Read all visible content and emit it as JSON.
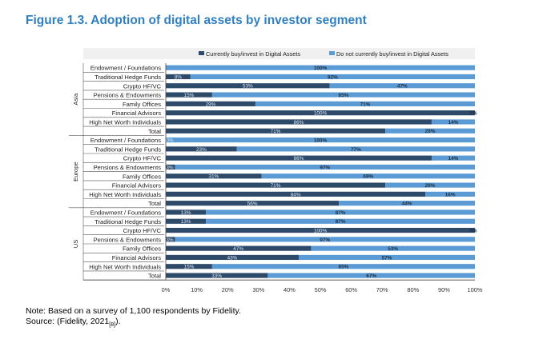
{
  "figure": {
    "title": "Figure 1.3. Adoption of digital assets by investor segment",
    "note": "Note: Based on a survey of 1,100 respondents by Fidelity.",
    "source_prefix": "Source: (Fidelity, 2021",
    "source_ref": "[8]",
    "source_suffix": ")."
  },
  "colors": {
    "invest": "#2e4a6b",
    "not_invest": "#5b9bd5",
    "title": "#2f7fc1"
  },
  "chart_data": {
    "type": "bar",
    "orientation": "horizontal",
    "stacked": true,
    "legend_position": "top-right",
    "xlim": [
      0,
      100
    ],
    "x_ticks": [
      "0%",
      "10%",
      "20%",
      "30%",
      "40%",
      "50%",
      "60%",
      "70%",
      "80%",
      "90%",
      "100%"
    ],
    "groups": [
      {
        "name": "Asia",
        "categories": [
          "Endowment / Foundations",
          "Traditional Hedge Funds",
          "Crypto HF/VC",
          "Pensions & Endowments",
          "Family Offices",
          "Financial Advisors",
          "High Net Worth Individuals",
          "Total"
        ],
        "invest": [
          0,
          8,
          53,
          15,
          29,
          100,
          86,
          71
        ],
        "not_invest": [
          100,
          92,
          47,
          85,
          71,
          0,
          14,
          29
        ],
        "invest_labels": [
          "",
          "8%",
          "53%",
          "15%",
          "29%",
          "100%",
          "86%",
          "71%"
        ],
        "not_invest_labels": [
          "100%",
          "92%",
          "47%",
          "85%",
          "71%",
          "0%",
          "14%",
          "29%"
        ]
      },
      {
        "name": "Europe",
        "categories": [
          "Endowment / Foundations",
          "Traditional Hedge Funds",
          "Crypto HF/VC",
          "Pensions & Endowments",
          "Family Offices",
          "Financial Advisors",
          "High Net Worth Individuals",
          "Total"
        ],
        "invest": [
          0,
          23,
          86,
          3,
          31,
          71,
          84,
          56
        ],
        "not_invest": [
          100,
          77,
          14,
          97,
          69,
          29,
          16,
          44
        ],
        "invest_labels": [
          "0%",
          "23%",
          "86%",
          "3%",
          "31%",
          "71%",
          "84%",
          "56%"
        ],
        "not_invest_labels": [
          "100%",
          "77%",
          "14%",
          "97%",
          "69%",
          "29%",
          "16%",
          "44%"
        ]
      },
      {
        "name": "US",
        "categories": [
          "Endowment / Foundations",
          "Traditional Hedge Funds",
          "Crypto HF/VC",
          "Pensions & Endowments",
          "Family Offices",
          "Financial Advisors",
          "High Net Worth Individuals",
          "Total"
        ],
        "invest": [
          13,
          13,
          100,
          3,
          47,
          43,
          15,
          33
        ],
        "not_invest": [
          87,
          87,
          0,
          97,
          53,
          57,
          85,
          67
        ],
        "invest_labels": [
          "13%",
          "13%",
          "100%",
          "3%",
          "47%",
          "43%",
          "15%",
          "33%"
        ],
        "not_invest_labels": [
          "87%",
          "87%",
          "0%",
          "97%",
          "53%",
          "57%",
          "85%",
          "67%"
        ]
      }
    ],
    "series": [
      {
        "name": "Currently buy/invest in Digital Assets"
      },
      {
        "name": "Do not currently buy/invest in Digital Assets"
      }
    ]
  }
}
